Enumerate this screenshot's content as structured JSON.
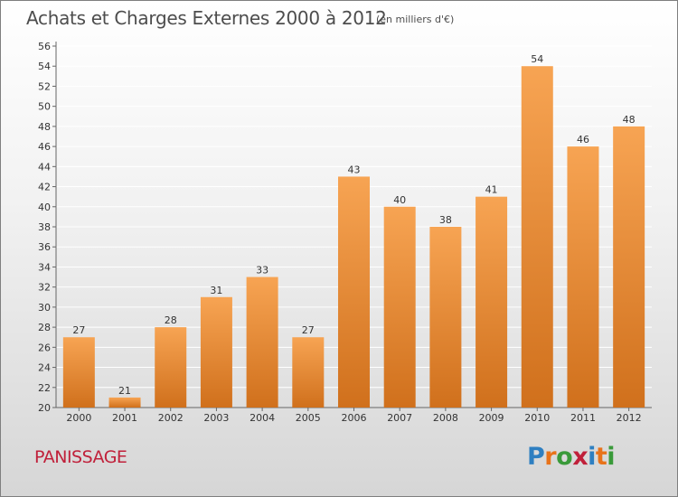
{
  "title": "Achats et Charges Externes 2000 à 2012",
  "subtitle": "(en milliers d'€)",
  "commune": "PANISSAGE",
  "logo": {
    "text": "Proxiti",
    "colors": [
      "#2e7fc1",
      "#e8731a",
      "#3a9a3a",
      "#c0203a",
      "#2e7fc1",
      "#e8731a",
      "#3a9a3a"
    ]
  },
  "colors": {
    "bar_light": "#f7a453",
    "bar_dark": "#d0701c",
    "grid": "#ffffff"
  },
  "chart_data": {
    "type": "bar",
    "categories": [
      "2000",
      "2001",
      "2002",
      "2003",
      "2004",
      "2005",
      "2006",
      "2007",
      "2008",
      "2009",
      "2010",
      "2011",
      "2012"
    ],
    "values": [
      27,
      21,
      28,
      31,
      33,
      27,
      43,
      40,
      38,
      41,
      54,
      46,
      48
    ],
    "title": "Achats et Charges Externes 2000 à 2012",
    "ylim": [
      20,
      56
    ],
    "yticks": [
      20,
      22,
      24,
      26,
      28,
      30,
      32,
      34,
      36,
      38,
      40,
      42,
      44,
      46,
      48,
      50,
      52,
      54,
      56
    ],
    "grid": true,
    "data_labels": true
  }
}
